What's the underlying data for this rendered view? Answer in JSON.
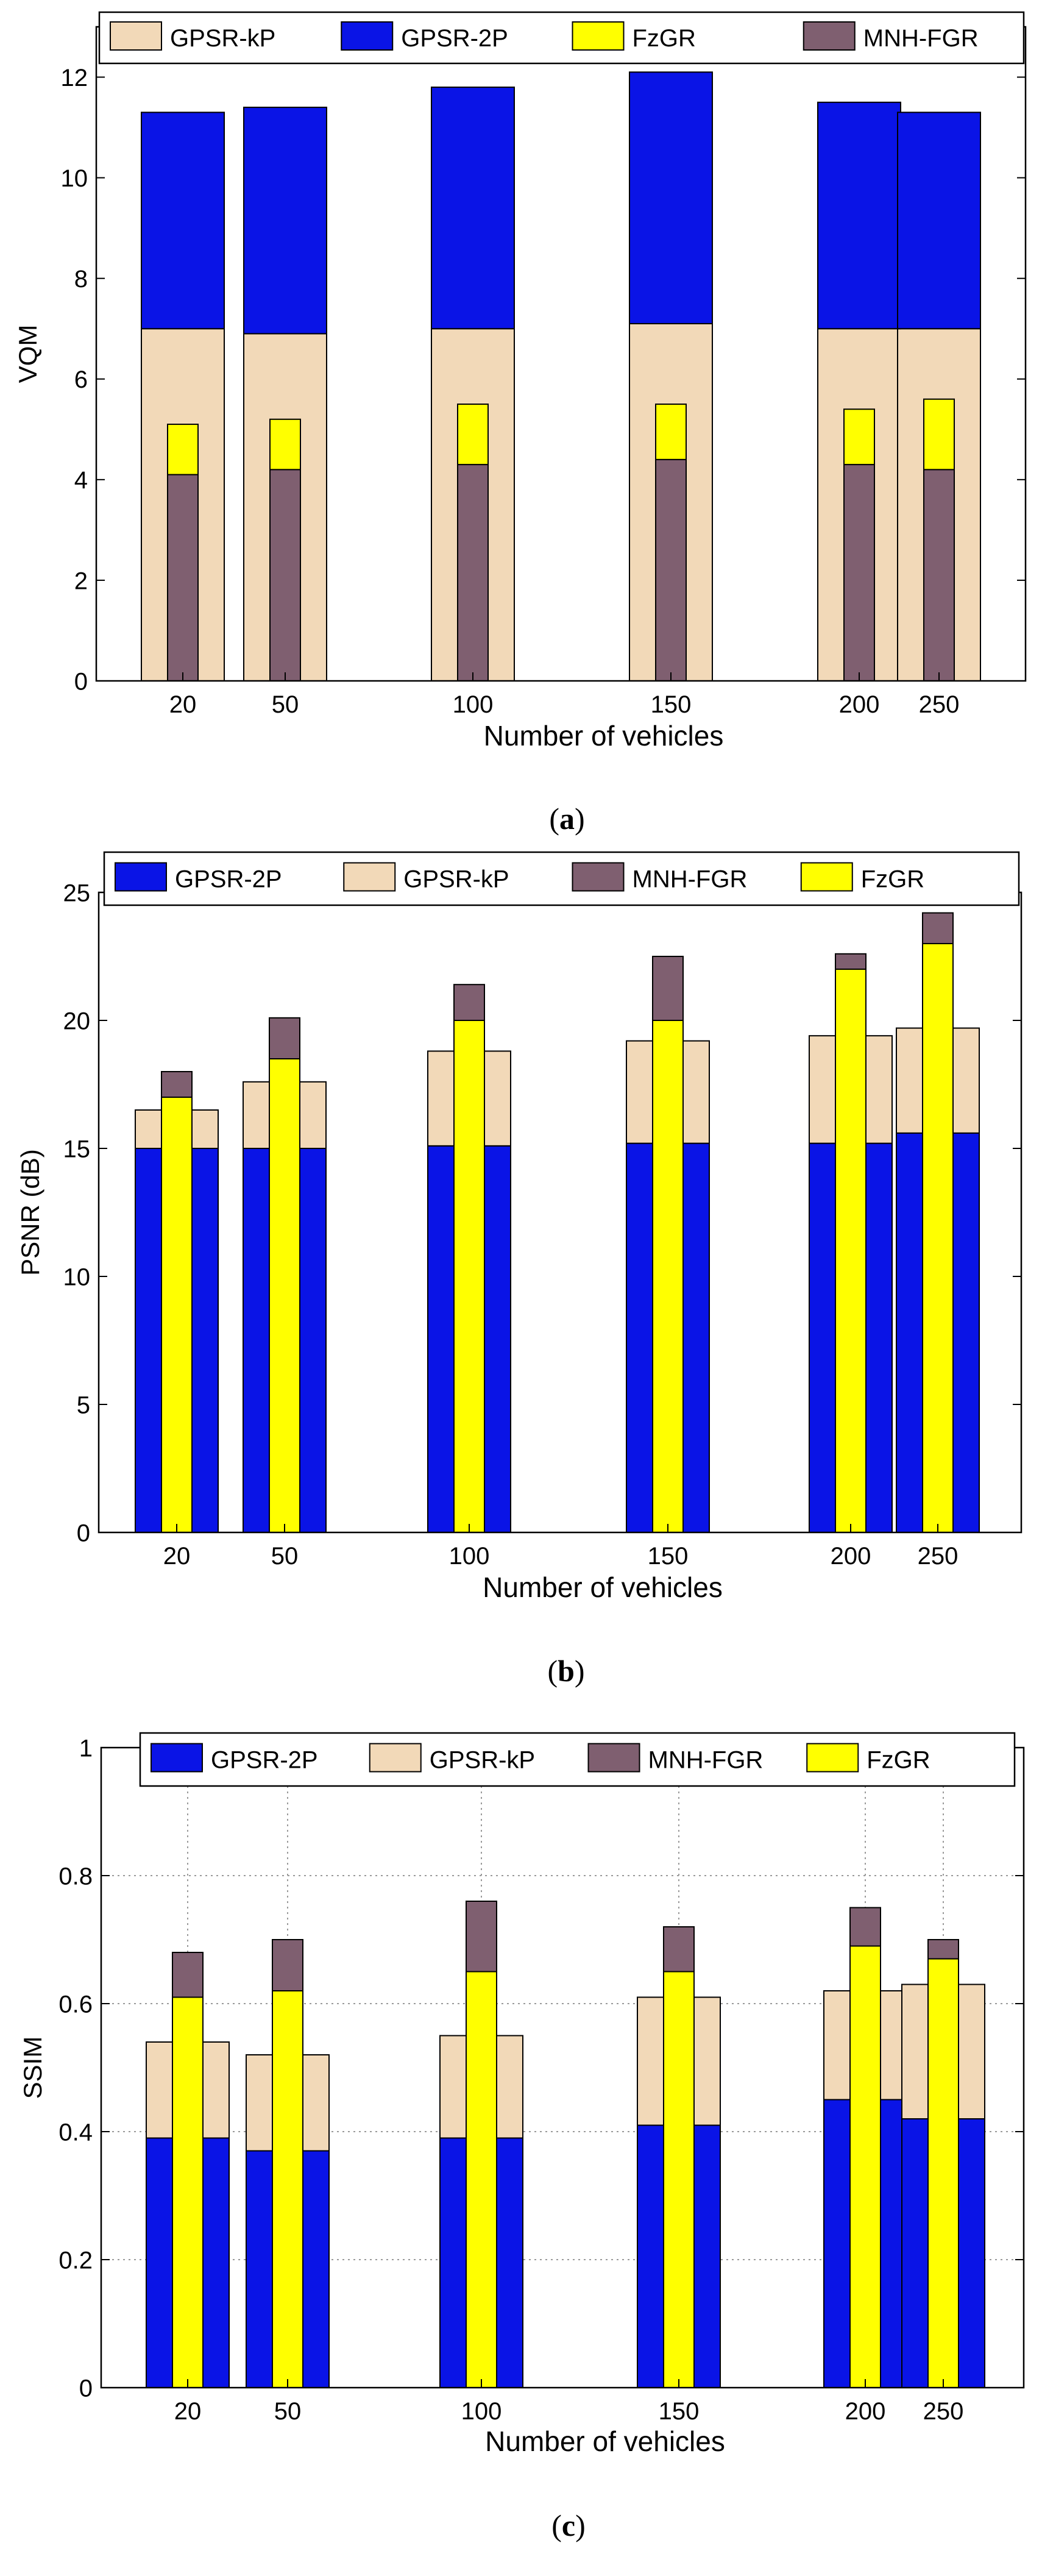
{
  "colors": {
    "gpsr_kp": "#f2d9b8",
    "gpsr_2p": "#0a14e6",
    "fzgr": "#ffff00",
    "mnh_fgr": "#7f5f70"
  },
  "chart_data": [
    {
      "type": "bar",
      "title": "",
      "caption": "a",
      "xlabel": "Number of vehicles",
      "ylabel": "VQM",
      "ylim": [
        0,
        13
      ],
      "yticks": [
        0,
        2,
        4,
        6,
        8,
        10,
        12
      ],
      "grid": false,
      "legend_position": "top",
      "categories": [
        "20",
        "50",
        "100",
        "150",
        "200",
        "250"
      ],
      "legend": [
        "GPSR-kP",
        "GPSR-2P",
        "FzGR",
        "MNH-FGR"
      ],
      "series": [
        {
          "name": "GPSR-kP",
          "color_key": "gpsr_kp",
          "layer": "wide",
          "base": 0,
          "values": [
            7.0,
            6.9,
            7.0,
            7.1,
            7.0,
            7.0
          ]
        },
        {
          "name": "GPSR-2P",
          "color_key": "gpsr_2p",
          "layer": "wide",
          "base": "GPSR-kP",
          "values": [
            11.3,
            11.4,
            11.8,
            12.1,
            11.5,
            11.3
          ]
        },
        {
          "name": "FzGR",
          "color_key": "fzgr",
          "layer": "narrow",
          "base": "MNH-FGR",
          "values": [
            5.1,
            5.2,
            5.5,
            5.5,
            5.4,
            5.6
          ]
        },
        {
          "name": "MNH-FGR",
          "color_key": "mnh_fgr",
          "layer": "narrow",
          "base": 0,
          "values": [
            4.1,
            4.2,
            4.3,
            4.4,
            4.3,
            4.2
          ]
        }
      ]
    },
    {
      "type": "bar",
      "title": "",
      "caption": "b",
      "xlabel": "Number of vehicles",
      "ylabel": "PSNR (dB)",
      "ylim": [
        0,
        25
      ],
      "yticks": [
        0,
        5,
        10,
        15,
        20,
        25
      ],
      "grid": false,
      "legend_position": "top",
      "categories": [
        "20",
        "50",
        "100",
        "150",
        "200",
        "250"
      ],
      "legend": [
        "GPSR-2P",
        "GPSR-kP",
        "MNH-FGR",
        "FzGR"
      ],
      "series": [
        {
          "name": "GPSR-2P",
          "color_key": "gpsr_2p",
          "layer": "wide",
          "base": 0,
          "values": [
            15.0,
            15.0,
            15.1,
            15.2,
            15.2,
            15.6
          ]
        },
        {
          "name": "GPSR-kP",
          "color_key": "gpsr_kp",
          "layer": "wide",
          "base": "GPSR-2P",
          "values": [
            16.5,
            17.6,
            18.8,
            19.2,
            19.4,
            19.7
          ]
        },
        {
          "name": "MNH-FGR",
          "color_key": "mnh_fgr",
          "layer": "narrow",
          "base": "FzGR",
          "values": [
            18.0,
            20.1,
            21.4,
            22.5,
            22.6,
            24.2
          ]
        },
        {
          "name": "FzGR",
          "color_key": "fzgr",
          "layer": "narrow",
          "base": 0,
          "values": [
            17.0,
            18.5,
            20.0,
            20.0,
            22.0,
            23.0
          ]
        }
      ]
    },
    {
      "type": "bar",
      "title": "",
      "caption": "c",
      "xlabel": "Number of vehicles",
      "ylabel": "SSIM",
      "ylim": [
        0,
        1
      ],
      "yticks": [
        0,
        0.2,
        0.4,
        0.6,
        0.8,
        1
      ],
      "grid": true,
      "legend_position": "top",
      "categories": [
        "20",
        "50",
        "100",
        "150",
        "200",
        "250"
      ],
      "legend": [
        "GPSR-2P",
        "GPSR-kP",
        "MNH-FGR",
        "FzGR"
      ],
      "series": [
        {
          "name": "GPSR-2P",
          "color_key": "gpsr_2p",
          "layer": "wide",
          "base": 0,
          "values": [
            0.39,
            0.37,
            0.39,
            0.41,
            0.45,
            0.42
          ]
        },
        {
          "name": "GPSR-kP",
          "color_key": "gpsr_kp",
          "layer": "wide",
          "base": "GPSR-2P",
          "values": [
            0.54,
            0.52,
            0.55,
            0.61,
            0.62,
            0.63
          ]
        },
        {
          "name": "MNH-FGR",
          "color_key": "mnh_fgr",
          "layer": "narrow",
          "base": "FzGR",
          "values": [
            0.68,
            0.7,
            0.76,
            0.72,
            0.75,
            0.7
          ]
        },
        {
          "name": "FzGR",
          "color_key": "fzgr",
          "layer": "narrow",
          "base": 0,
          "values": [
            0.61,
            0.62,
            0.65,
            0.65,
            0.69,
            0.67
          ]
        }
      ]
    }
  ]
}
